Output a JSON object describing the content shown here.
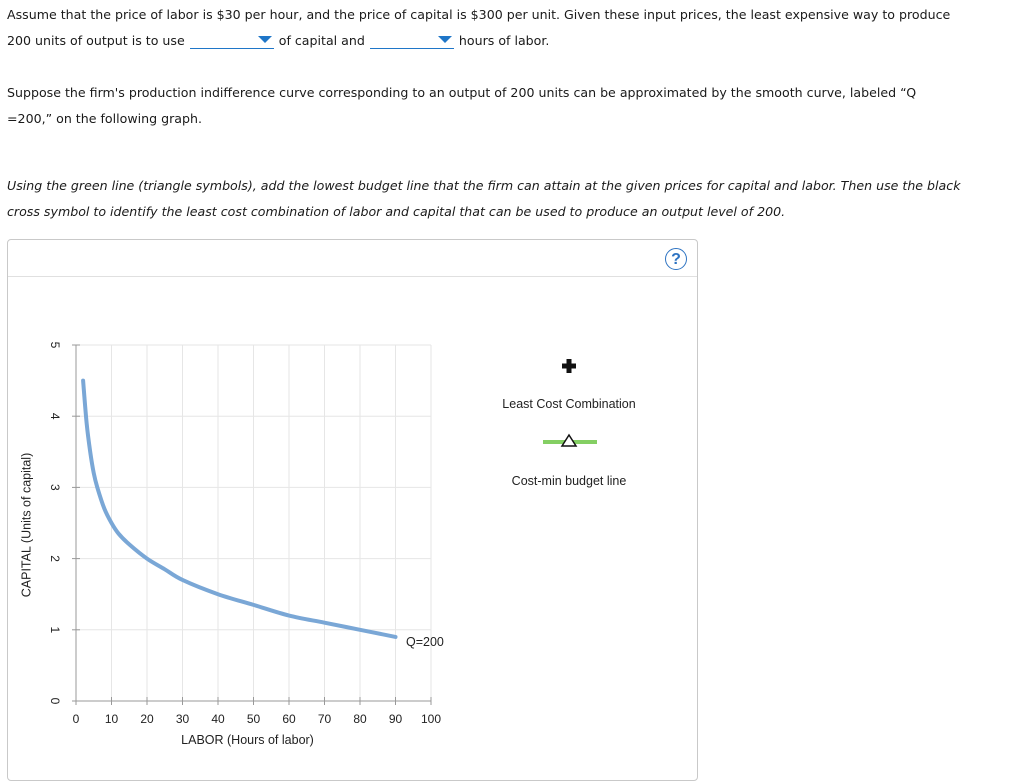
{
  "question": {
    "p1_text_a": "Assume that the price of labor is $30 per hour, and the price of capital is $300 per unit. Given these input prices, the least expensive way to produce",
    "p1_text_b": "200 units of output is to use",
    "p1_text_c": "of capital and",
    "p1_text_d": "hours of labor.",
    "dropdown_capital_value": "",
    "dropdown_labor_value": "",
    "p2_text": "Suppose the firm's production indifference curve corresponding to an output of 200 units can be approximated by the smooth curve, labeled “Q =200,” on the following graph.",
    "p2_line1": "Suppose the firm's production indifference curve corresponding to an output of 200 units can be approximated by the smooth curve, labeled “Q",
    "p2_line2": "=200,” on the following graph.",
    "p3_line1": "Using the green line (triangle symbols), add the lowest budget line that the firm can attain at the given prices for capital and labor. Then use the black",
    "p3_line2": "cross symbol to identify the least cost combination of labor and capital that can be used to produce an output level of 200."
  },
  "graph": {
    "help_label": "?",
    "curve_label": "Q=200",
    "legend_cross_label": "Least Cost Combination",
    "legend_line_label": "Cost-min budget line",
    "colors": {
      "curve": "#7aa7d6",
      "budget_line": "#84cf63",
      "grid": "#e6e6e6",
      "axis": "#999999",
      "help": "#2d73c2"
    }
  },
  "chart_data": {
    "type": "line",
    "xlabel": "LABOR (Hours of labor)",
    "ylabel": "CAPITAL (Units of capital)",
    "xlim": [
      0,
      100
    ],
    "ylim": [
      0,
      5
    ],
    "x_ticks": [
      "0",
      "10",
      "20",
      "30",
      "40",
      "50",
      "60",
      "70",
      "80",
      "90",
      "100"
    ],
    "y_ticks": [
      "0",
      "1",
      "2",
      "3",
      "4",
      "5"
    ],
    "grid": true,
    "series": [
      {
        "name": "Q=200",
        "x": [
          2,
          3,
          4,
          5,
          6,
          8,
          10,
          12,
          15,
          20,
          25,
          30,
          40,
          50,
          60,
          70,
          80,
          90
        ],
        "y": [
          4.5,
          3.9,
          3.5,
          3.2,
          3.0,
          2.7,
          2.5,
          2.35,
          2.2,
          2.0,
          1.85,
          1.7,
          1.5,
          1.35,
          1.2,
          1.1,
          1.0,
          0.9
        ]
      }
    ]
  }
}
